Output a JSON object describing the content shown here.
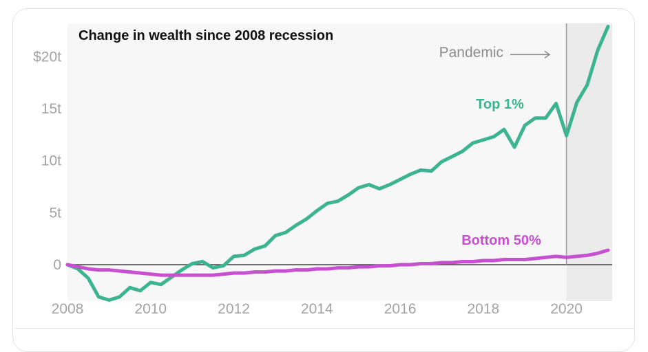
{
  "chart_data": {
    "type": "line",
    "title": "Change in wealth since 2008 recession",
    "xlabel": "",
    "ylabel": "",
    "xlim": [
      2008,
      2021.1
    ],
    "ylim": [
      -3.5,
      23.2
    ],
    "x_ticks": [
      2008,
      2010,
      2012,
      2014,
      2016,
      2018,
      2020
    ],
    "x_tick_labels": [
      "2008",
      "2010",
      "2012",
      "2014",
      "2016",
      "2018",
      "2020"
    ],
    "y_ticks": [
      0,
      5,
      10,
      15,
      20
    ],
    "y_tick_labels": [
      "0",
      "5t",
      "10t",
      "15t",
      "$20t"
    ],
    "grid": false,
    "legend": "inline labels",
    "annotation": {
      "label": "Pandemic",
      "x": 2020
    },
    "x": [
      2008.0,
      2008.25,
      2008.5,
      2008.75,
      2009.0,
      2009.25,
      2009.5,
      2009.75,
      2010.0,
      2010.25,
      2010.5,
      2010.75,
      2011.0,
      2011.25,
      2011.5,
      2011.75,
      2012.0,
      2012.25,
      2012.5,
      2012.75,
      2013.0,
      2013.25,
      2013.5,
      2013.75,
      2014.0,
      2014.25,
      2014.5,
      2014.75,
      2015.0,
      2015.25,
      2015.5,
      2015.75,
      2016.0,
      2016.25,
      2016.5,
      2016.75,
      2017.0,
      2017.25,
      2017.5,
      2017.75,
      2018.0,
      2018.25,
      2018.5,
      2018.75,
      2019.0,
      2019.25,
      2019.5,
      2019.75,
      2020.0,
      2020.25,
      2020.5,
      2020.75,
      2021.0
    ],
    "series": [
      {
        "name": "Top 1%",
        "color": "#3bb48f",
        "values": [
          0,
          -0.4,
          -1.3,
          -3.1,
          -3.4,
          -3.1,
          -2.2,
          -2.5,
          -1.7,
          -1.9,
          -1.2,
          -0.5,
          0.1,
          0.3,
          -0.3,
          -0.1,
          0.8,
          0.9,
          1.5,
          1.8,
          2.8,
          3.1,
          3.8,
          4.4,
          5.2,
          5.9,
          6.1,
          6.7,
          7.4,
          7.7,
          7.3,
          7.7,
          8.2,
          8.7,
          9.1,
          9.0,
          9.9,
          10.4,
          10.9,
          11.7,
          12.0,
          12.3,
          13.0,
          11.3,
          13.4,
          14.1,
          14.1,
          15.5,
          12.4,
          15.6,
          17.3,
          20.6,
          22.9
        ]
      },
      {
        "name": "Bottom 50%",
        "color": "#c750d1",
        "values": [
          0,
          -0.2,
          -0.4,
          -0.5,
          -0.5,
          -0.6,
          -0.7,
          -0.8,
          -0.9,
          -1.0,
          -1.0,
          -1.0,
          -1.0,
          -1.0,
          -1.0,
          -0.9,
          -0.8,
          -0.8,
          -0.7,
          -0.7,
          -0.6,
          -0.6,
          -0.5,
          -0.5,
          -0.4,
          -0.4,
          -0.3,
          -0.3,
          -0.2,
          -0.2,
          -0.1,
          -0.1,
          0.0,
          0.0,
          0.1,
          0.1,
          0.2,
          0.2,
          0.3,
          0.3,
          0.4,
          0.4,
          0.5,
          0.5,
          0.5,
          0.6,
          0.7,
          0.8,
          0.7,
          0.8,
          0.9,
          1.1,
          1.4
        ]
      }
    ]
  }
}
